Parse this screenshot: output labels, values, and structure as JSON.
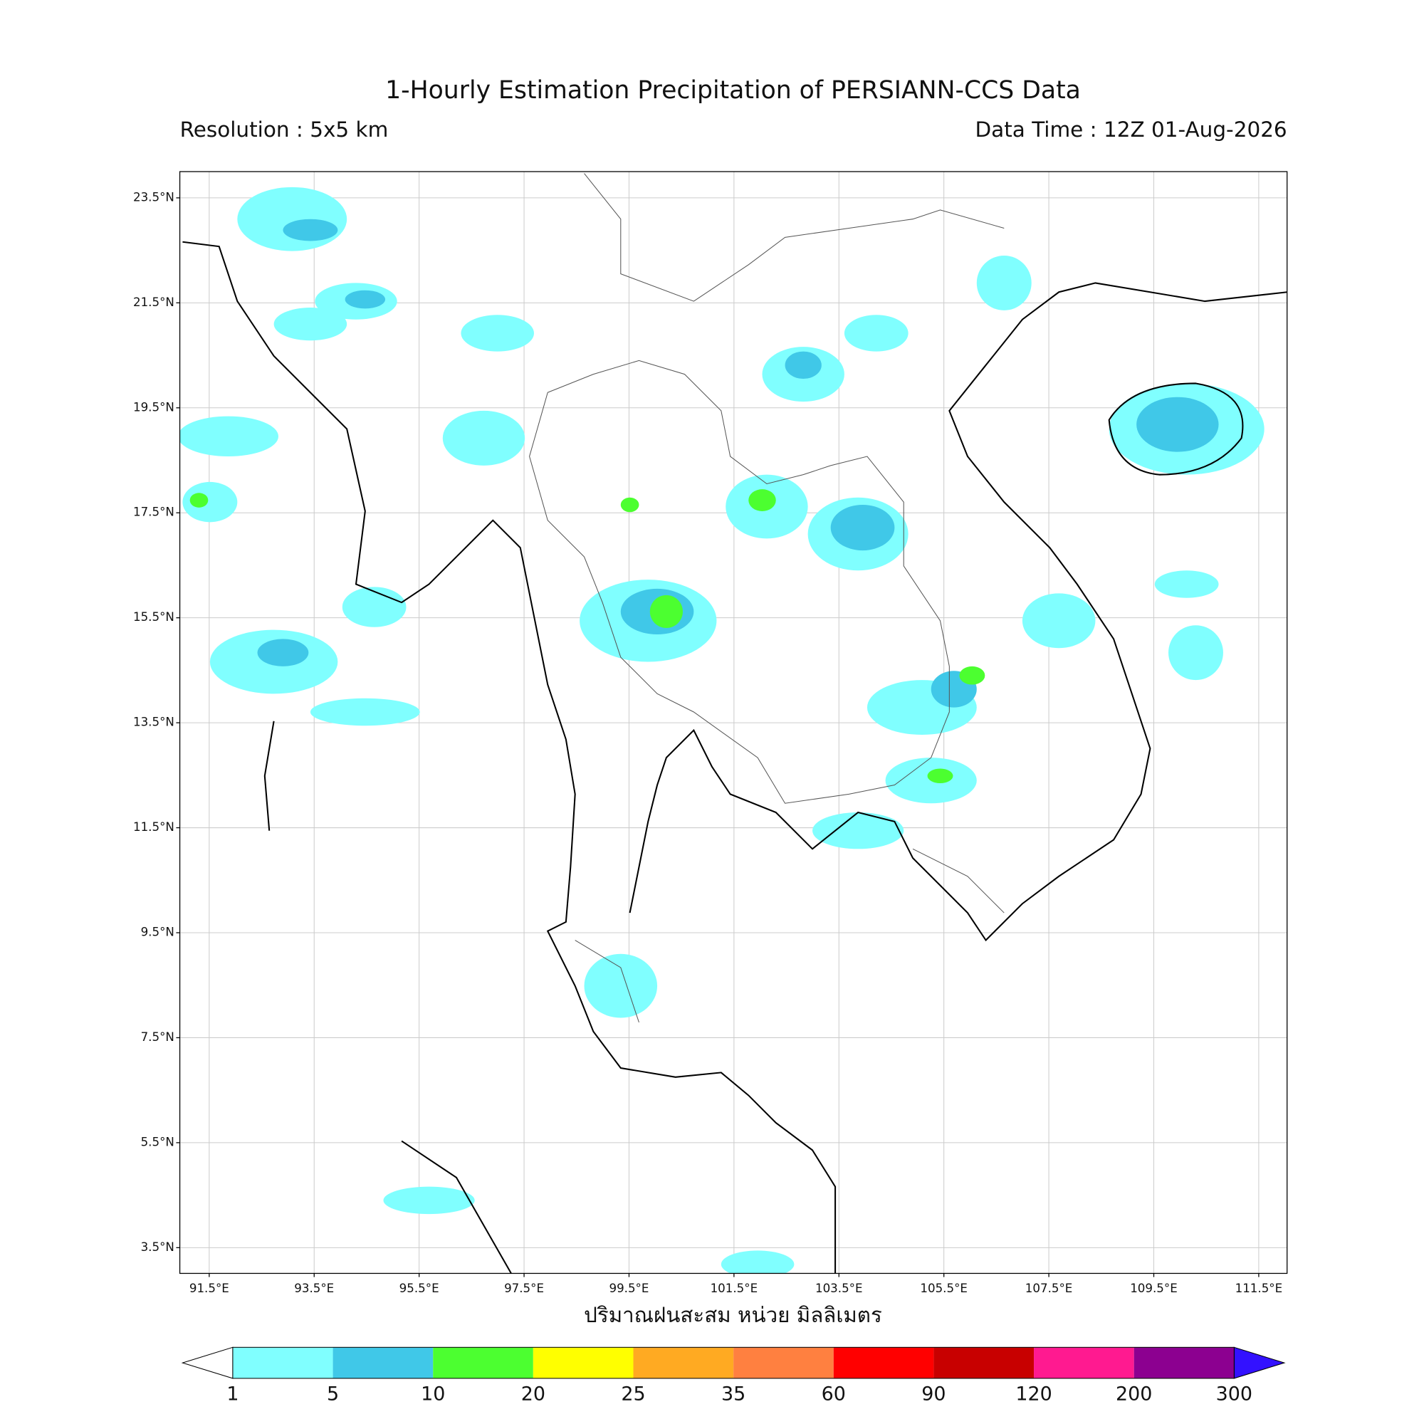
{
  "header": {
    "title": "1-Hourly Estimation Precipitation of PERSIANN-CCS Data",
    "resolution": "Resolution : 5x5 km",
    "data_time": "Data Time : 12Z 01-Aug-2026"
  },
  "map": {
    "lonlim": [
      90.94,
      112.04
    ],
    "latlim": [
      3.01,
      24.0
    ],
    "lon_ticks": [
      {
        "value": 91.5,
        "label": "91.5°E"
      },
      {
        "value": 93.5,
        "label": "93.5°E"
      },
      {
        "value": 95.5,
        "label": "95.5°E"
      },
      {
        "value": 97.5,
        "label": "97.5°E"
      },
      {
        "value": 99.5,
        "label": "99.5°E"
      },
      {
        "value": 101.5,
        "label": "101.5°E"
      },
      {
        "value": 103.5,
        "label": "103.5°E"
      },
      {
        "value": 105.5,
        "label": "105.5°E"
      },
      {
        "value": 107.5,
        "label": "107.5°E"
      },
      {
        "value": 109.5,
        "label": "109.5°E"
      },
      {
        "value": 111.5,
        "label": "111.5°E"
      }
    ],
    "lat_ticks": [
      {
        "value": 23.5,
        "label": "23.5°N"
      },
      {
        "value": 21.5,
        "label": "21.5°N"
      },
      {
        "value": 19.5,
        "label": "19.5°N"
      },
      {
        "value": 17.5,
        "label": "17.5°N"
      },
      {
        "value": 15.5,
        "label": "15.5°N"
      },
      {
        "value": 13.5,
        "label": "13.5°N"
      },
      {
        "value": 11.5,
        "label": "11.5°N"
      },
      {
        "value": 9.5,
        "label": "9.5°N"
      },
      {
        "value": 7.5,
        "label": "7.5°N"
      },
      {
        "value": 5.5,
        "label": "5.5°N"
      },
      {
        "value": 3.5,
        "label": "3.5°N"
      }
    ]
  },
  "colorbar": {
    "label": "ปริมาณฝนสะสม หน่วย มิลลิเมตร",
    "levels": [
      1,
      5,
      10,
      20,
      25,
      35,
      60,
      90,
      120,
      200,
      300
    ],
    "colors": [
      "#80ffff",
      "#40c8e8",
      "#4cff30",
      "#ffff00",
      "#ffaa22",
      "#ff8040",
      "#ff0000",
      "#c80000",
      "#ff1a90",
      "#8c0090"
    ],
    "under_color": "#ffffff",
    "over_color": "#3311ff"
  }
}
